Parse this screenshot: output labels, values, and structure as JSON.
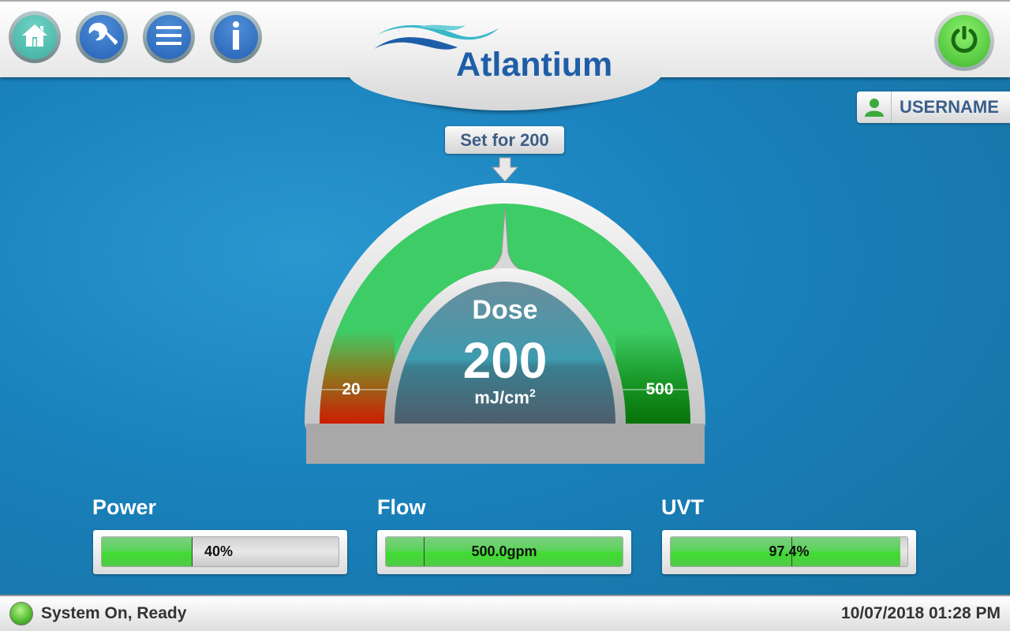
{
  "header": {
    "buttons": [
      {
        "name": "home",
        "icon": "home-icon"
      },
      {
        "name": "settings",
        "icon": "wrench-icon"
      },
      {
        "name": "menu",
        "icon": "menu-icon"
      },
      {
        "name": "info",
        "icon": "info-icon"
      }
    ],
    "logo_text": "Atlantium",
    "power_icon": "power-icon"
  },
  "user": {
    "name": "USERNAME",
    "icon": "user-icon"
  },
  "gauge": {
    "setpoint_label": "Set for 200",
    "title": "Dose",
    "value": "200",
    "unit": "mJ/cm",
    "unit_sup": "2",
    "min_label": "20",
    "max_label": "500",
    "colors": {
      "normal": "#3ecc66",
      "low": "#cc1a00",
      "high": "#0a7a0a"
    }
  },
  "meters": [
    {
      "label": "Power",
      "value_text": "40%",
      "fill_percent": 38
    },
    {
      "label": "Flow",
      "value_text": "500.0gpm",
      "fill_percent": 100,
      "marker_percent": 16
    },
    {
      "label": "UVT",
      "value_text": "97.4%",
      "fill_percent": 97,
      "marker_percent": 51
    }
  ],
  "status": {
    "text": "System On, Ready",
    "datetime": "10/07/2018 01:28 PM",
    "led_color": "#4fb82d"
  }
}
